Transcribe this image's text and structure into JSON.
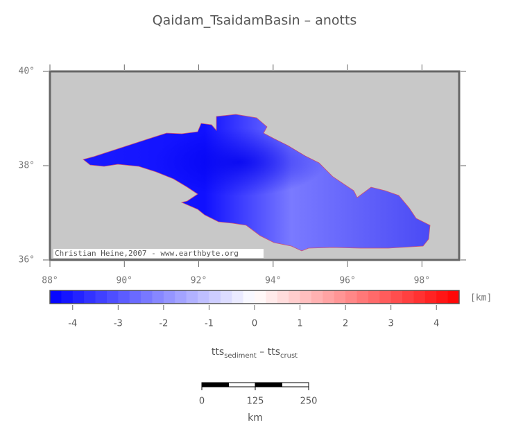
{
  "title": "Qaidam_TsaidamBasin – anotts",
  "map": {
    "xlim": [
      88,
      99
    ],
    "ylim": [
      36,
      40
    ],
    "lon_ticks": [
      {
        "value": 88,
        "label": "88°"
      },
      {
        "value": 90,
        "label": "90°"
      },
      {
        "value": 92,
        "label": "92°"
      },
      {
        "value": 94,
        "label": "94°"
      },
      {
        "value": 96,
        "label": "96°"
      },
      {
        "value": 98,
        "label": "98°"
      }
    ],
    "lat_ticks": [
      {
        "value": 36,
        "label": "36°"
      },
      {
        "value": 38,
        "label": "38°"
      },
      {
        "value": 40,
        "label": "40°"
      }
    ],
    "credit": "Christian Heine,2007 - www.earthbyte.org"
  },
  "colorbar": {
    "range": [
      -4.5,
      4.5
    ],
    "ticks": [
      -4,
      -3,
      -2,
      -1,
      0,
      1,
      2,
      3,
      4
    ],
    "unit": "[km]",
    "label": {
      "base1": "tts",
      "sub1": "sediment",
      "base2": " – tts",
      "sub2": "crust"
    }
  },
  "scalebar": {
    "range": [
      0,
      250
    ],
    "ticks": [
      0,
      125,
      250
    ],
    "unit": "km"
  }
}
